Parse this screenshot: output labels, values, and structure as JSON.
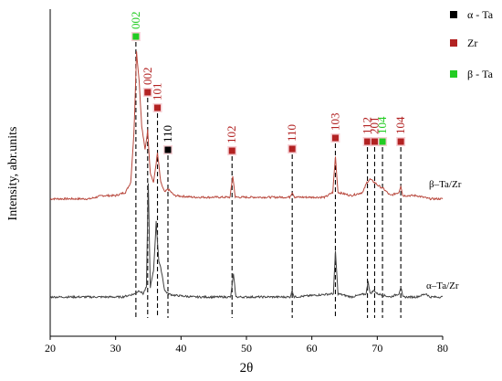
{
  "chart_data": {
    "type": "line",
    "xlabel": "2θ",
    "ylabel": "Intensity, abr.units",
    "xlim": [
      20,
      80
    ],
    "x_ticks": [
      20,
      30,
      40,
      50,
      60,
      70,
      80
    ],
    "y_ticks_shown": false,
    "grid": false,
    "legend": {
      "placement": "top-right",
      "entries": [
        {
          "label": "α - Ta",
          "color": "#000000"
        },
        {
          "label": "Zr",
          "color": "#b22222"
        },
        {
          "label": "β - Ta",
          "color": "#22cc22"
        }
      ]
    },
    "series": [
      {
        "name": "β–Ta/Zr",
        "color": "#b8473c",
        "baseline": 0.42,
        "points": [
          [
            20,
            0.42
          ],
          [
            24,
            0.42
          ],
          [
            26,
            0.42
          ],
          [
            28,
            0.43
          ],
          [
            30,
            0.43
          ],
          [
            31.5,
            0.44
          ],
          [
            32.3,
            0.47
          ],
          [
            32.8,
            0.62
          ],
          [
            33.2,
            0.87
          ],
          [
            33.6,
            0.78
          ],
          [
            34.0,
            0.64
          ],
          [
            34.5,
            0.57
          ],
          [
            34.9,
            0.63
          ],
          [
            35.3,
            0.5
          ],
          [
            35.8,
            0.47
          ],
          [
            36.4,
            0.56
          ],
          [
            36.9,
            0.47
          ],
          [
            37.5,
            0.44
          ],
          [
            38.0,
            0.45
          ],
          [
            39,
            0.43
          ],
          [
            42,
            0.425
          ],
          [
            47.5,
            0.425
          ],
          [
            47.9,
            0.49
          ],
          [
            48.3,
            0.425
          ],
          [
            52,
            0.425
          ],
          [
            56.6,
            0.425
          ],
          [
            57.0,
            0.44
          ],
          [
            57.4,
            0.425
          ],
          [
            62,
            0.425
          ],
          [
            63.2,
            0.44
          ],
          [
            63.6,
            0.55
          ],
          [
            64.0,
            0.44
          ],
          [
            66,
            0.43
          ],
          [
            67.8,
            0.44
          ],
          [
            68.4,
            0.47
          ],
          [
            68.9,
            0.48
          ],
          [
            69.6,
            0.47
          ],
          [
            70.2,
            0.46
          ],
          [
            71.0,
            0.45
          ],
          [
            72,
            0.43
          ],
          [
            73.3,
            0.44
          ],
          [
            73.6,
            0.46
          ],
          [
            73.9,
            0.43
          ],
          [
            76,
            0.43
          ],
          [
            78,
            0.42
          ],
          [
            80,
            0.42
          ]
        ]
      },
      {
        "name": "α–Ta/Zr",
        "color": "#404040",
        "baseline": 0.12,
        "points": [
          [
            20,
            0.12
          ],
          [
            28,
            0.12
          ],
          [
            31,
            0.12
          ],
          [
            32.0,
            0.125
          ],
          [
            33.0,
            0.13
          ],
          [
            33.6,
            0.14
          ],
          [
            34.2,
            0.13
          ],
          [
            34.7,
            0.15
          ],
          [
            35.0,
            0.47
          ],
          [
            35.3,
            0.15
          ],
          [
            35.8,
            0.2
          ],
          [
            36.2,
            0.35
          ],
          [
            36.6,
            0.23
          ],
          [
            37.0,
            0.2
          ],
          [
            37.5,
            0.14
          ],
          [
            38.0,
            0.13
          ],
          [
            39,
            0.125
          ],
          [
            42,
            0.12
          ],
          [
            47.6,
            0.12
          ],
          [
            48.0,
            0.19
          ],
          [
            48.4,
            0.12
          ],
          [
            52,
            0.12
          ],
          [
            56.7,
            0.12
          ],
          [
            57.0,
            0.14
          ],
          [
            57.3,
            0.12
          ],
          [
            63.3,
            0.13
          ],
          [
            63.6,
            0.26
          ],
          [
            64.0,
            0.13
          ],
          [
            66,
            0.12
          ],
          [
            68.3,
            0.13
          ],
          [
            68.6,
            0.17
          ],
          [
            68.9,
            0.13
          ],
          [
            69.5,
            0.14
          ],
          [
            70.0,
            0.13
          ],
          [
            72,
            0.12
          ],
          [
            73.3,
            0.13
          ],
          [
            73.6,
            0.15
          ],
          [
            73.9,
            0.12
          ],
          [
            76,
            0.12
          ],
          [
            77.5,
            0.13
          ],
          [
            78,
            0.12
          ],
          [
            80,
            0.12
          ]
        ]
      }
    ],
    "peaks": [
      {
        "x": 33.1,
        "phase": "β - Ta",
        "label": "002",
        "label_color": "#22cc22"
      },
      {
        "x": 34.9,
        "phase": "Zr",
        "label": "002",
        "label_color": "#b22222"
      },
      {
        "x": 36.4,
        "phase": "Zr",
        "label": "101",
        "label_color": "#b22222"
      },
      {
        "x": 38.0,
        "phase": "α - Ta",
        "label": "110",
        "label_color": "#000000"
      },
      {
        "x": 47.8,
        "phase": "Zr",
        "label": "102",
        "label_color": "#b22222"
      },
      {
        "x": 57.0,
        "phase": "Zr",
        "label": "110",
        "label_color": "#b22222"
      },
      {
        "x": 63.6,
        "phase": "Zr",
        "label": "103",
        "label_color": "#b22222"
      },
      {
        "x": 68.5,
        "phase": "Zr",
        "label": "112",
        "label_color": "#b22222"
      },
      {
        "x": 69.6,
        "phase": "Zr",
        "label": "201",
        "label_color": "#b22222"
      },
      {
        "x": 70.8,
        "phase": "β - Ta",
        "label": "104",
        "label_color": "#22cc22"
      },
      {
        "x": 73.6,
        "phase": "Zr",
        "label": "104",
        "label_color": "#b22222"
      }
    ]
  }
}
